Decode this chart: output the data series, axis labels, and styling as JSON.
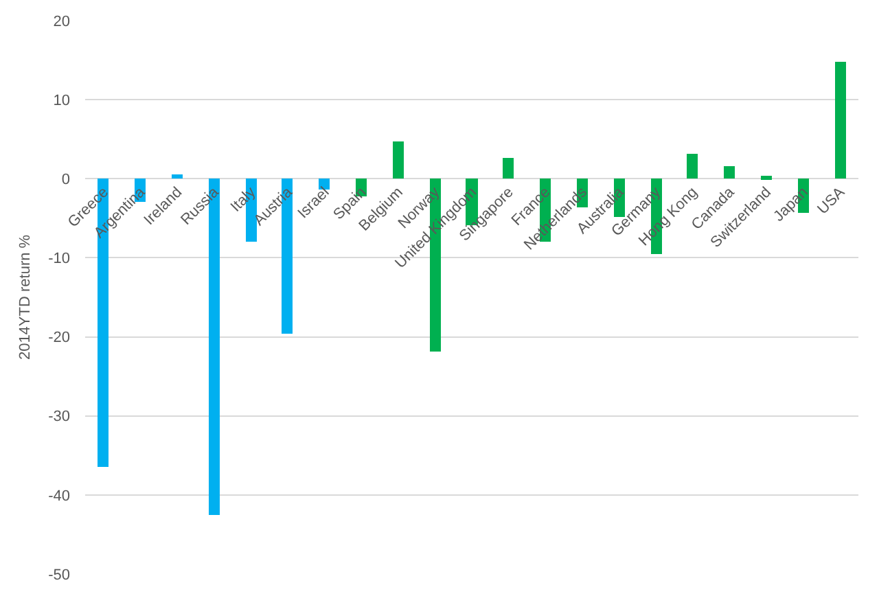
{
  "chart_data": {
    "type": "bar",
    "ylabel": "2014YTD return %",
    "categories": [
      "Greece",
      "Argentina",
      "Ireland",
      "Russia",
      "Italy",
      "Austria",
      "Israel",
      "Spain",
      "Belgium",
      "Norway",
      "United Kingdom",
      "Singapore",
      "France",
      "Netherlands",
      "Australia",
      "Germany",
      "Hong Kong",
      "Canada",
      "Switzerland",
      "Japan",
      "USA"
    ],
    "values": [
      -36.4,
      -3.0,
      0.6,
      -42.6,
      -8.0,
      -19.6,
      -1.4,
      -2.2,
      4.8,
      -21.8,
      -5.8,
      2.6,
      -8.0,
      -3.6,
      -4.8,
      -9.5,
      3.1,
      1.6,
      0.3,
      -4.3,
      14.8
    ],
    "colors": [
      "#00b0f0",
      "#00b0f0",
      "#00b0f0",
      "#00b0f0",
      "#00b0f0",
      "#00b0f0",
      "#00b0f0",
      "#00b050",
      "#00b050",
      "#00b050",
      "#00b050",
      "#00b050",
      "#00b050",
      "#00b050",
      "#00b050",
      "#00b050",
      "#00b050",
      "#00b050",
      "#00b050",
      "#00b050",
      "#00b050"
    ],
    "ylim": [
      -50,
      20
    ],
    "yticks": [
      -50,
      -40,
      -30,
      -20,
      -10,
      0,
      10,
      20
    ],
    "grid": "y"
  }
}
